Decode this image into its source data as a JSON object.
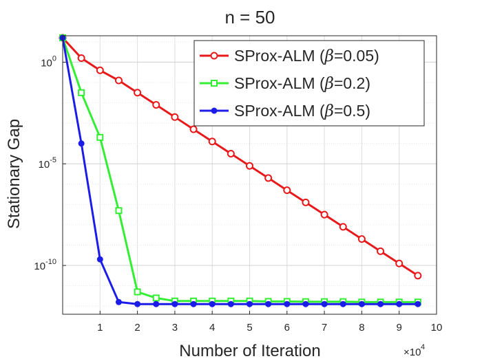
{
  "chart_data": {
    "type": "line",
    "title": "n = 50",
    "xlabel": "Number of Iteration",
    "ylabel": "Stationary Gap",
    "x_multiplier": {
      "base": "×10",
      "exponent": "4"
    },
    "xlim": [
      0,
      10
    ],
    "ylim_log10": [
      -12.4,
      1.3
    ],
    "yscale": "log",
    "grid": true,
    "x_ticks": [
      {
        "value": 1,
        "label": "1"
      },
      {
        "value": 2,
        "label": "2"
      },
      {
        "value": 3,
        "label": "3"
      },
      {
        "value": 4,
        "label": "4"
      },
      {
        "value": 5,
        "label": "5"
      },
      {
        "value": 6,
        "label": "6"
      },
      {
        "value": 7,
        "label": "7"
      },
      {
        "value": 8,
        "label": "8"
      },
      {
        "value": 9,
        "label": "9"
      },
      {
        "value": 10,
        "label": "10"
      }
    ],
    "y_ticks": [
      {
        "log10": 0,
        "base": "10",
        "exp": "0"
      },
      {
        "log10": -5,
        "base": "10",
        "exp": "-5"
      },
      {
        "log10": -10,
        "base": "10",
        "exp": "-10"
      }
    ],
    "legend_position": "top-right",
    "series": [
      {
        "name": "SProx-ALM (β=0.05)",
        "legend_prefix": "SProx-ALM (",
        "legend_symbol": "β",
        "legend_suffix": "=0.05)",
        "color": "#e8191b",
        "marker": "circle",
        "x": [
          0,
          0.5,
          1,
          1.5,
          2,
          2.5,
          3,
          3.5,
          4,
          4.5,
          5,
          5.5,
          6,
          6.5,
          7,
          7.5,
          8,
          8.5,
          9,
          9.5
        ],
        "log10_y": [
          1.2,
          0.2,
          -0.4,
          -0.9,
          -1.5,
          -2.1,
          -2.7,
          -3.3,
          -3.9,
          -4.5,
          -5.1,
          -5.7,
          -6.3,
          -6.9,
          -7.5,
          -8.1,
          -8.7,
          -9.3,
          -9.9,
          -10.5
        ]
      },
      {
        "name": "SProx-ALM (β=0.2)",
        "legend_prefix": "SProx-ALM (",
        "legend_symbol": "β",
        "legend_suffix": "=0.2)",
        "color": "#33ee33",
        "marker": "square",
        "x": [
          0,
          0.5,
          1,
          1.5,
          2,
          2.5,
          3,
          3.5,
          4,
          4.5,
          5,
          5.5,
          6,
          6.5,
          7,
          7.5,
          8,
          8.5,
          9,
          9.5
        ],
        "log10_y": [
          1.2,
          -1.5,
          -3.7,
          -7.3,
          -11.3,
          -11.6,
          -11.75,
          -11.75,
          -11.75,
          -11.75,
          -11.75,
          -11.77,
          -11.77,
          -11.78,
          -11.78,
          -11.78,
          -11.8,
          -11.8,
          -11.8,
          -11.8
        ]
      },
      {
        "name": "SProx-ALM (β=0.5)",
        "legend_prefix": "SProx-ALM (",
        "legend_symbol": "β",
        "legend_suffix": "=0.5)",
        "color": "#1c1ce8",
        "marker": "dot",
        "x": [
          0,
          0.5,
          1,
          1.5,
          2,
          2.5,
          3,
          3.5,
          4,
          4.5,
          5,
          5.5,
          6,
          6.5,
          7,
          7.5,
          8,
          8.5,
          9,
          9.5
        ],
        "log10_y": [
          1.2,
          -4.0,
          -9.7,
          -11.8,
          -11.9,
          -11.9,
          -11.9,
          -11.9,
          -11.9,
          -11.9,
          -11.9,
          -11.9,
          -11.9,
          -11.9,
          -11.9,
          -11.9,
          -11.9,
          -11.9,
          -11.9,
          -11.9
        ]
      }
    ]
  }
}
